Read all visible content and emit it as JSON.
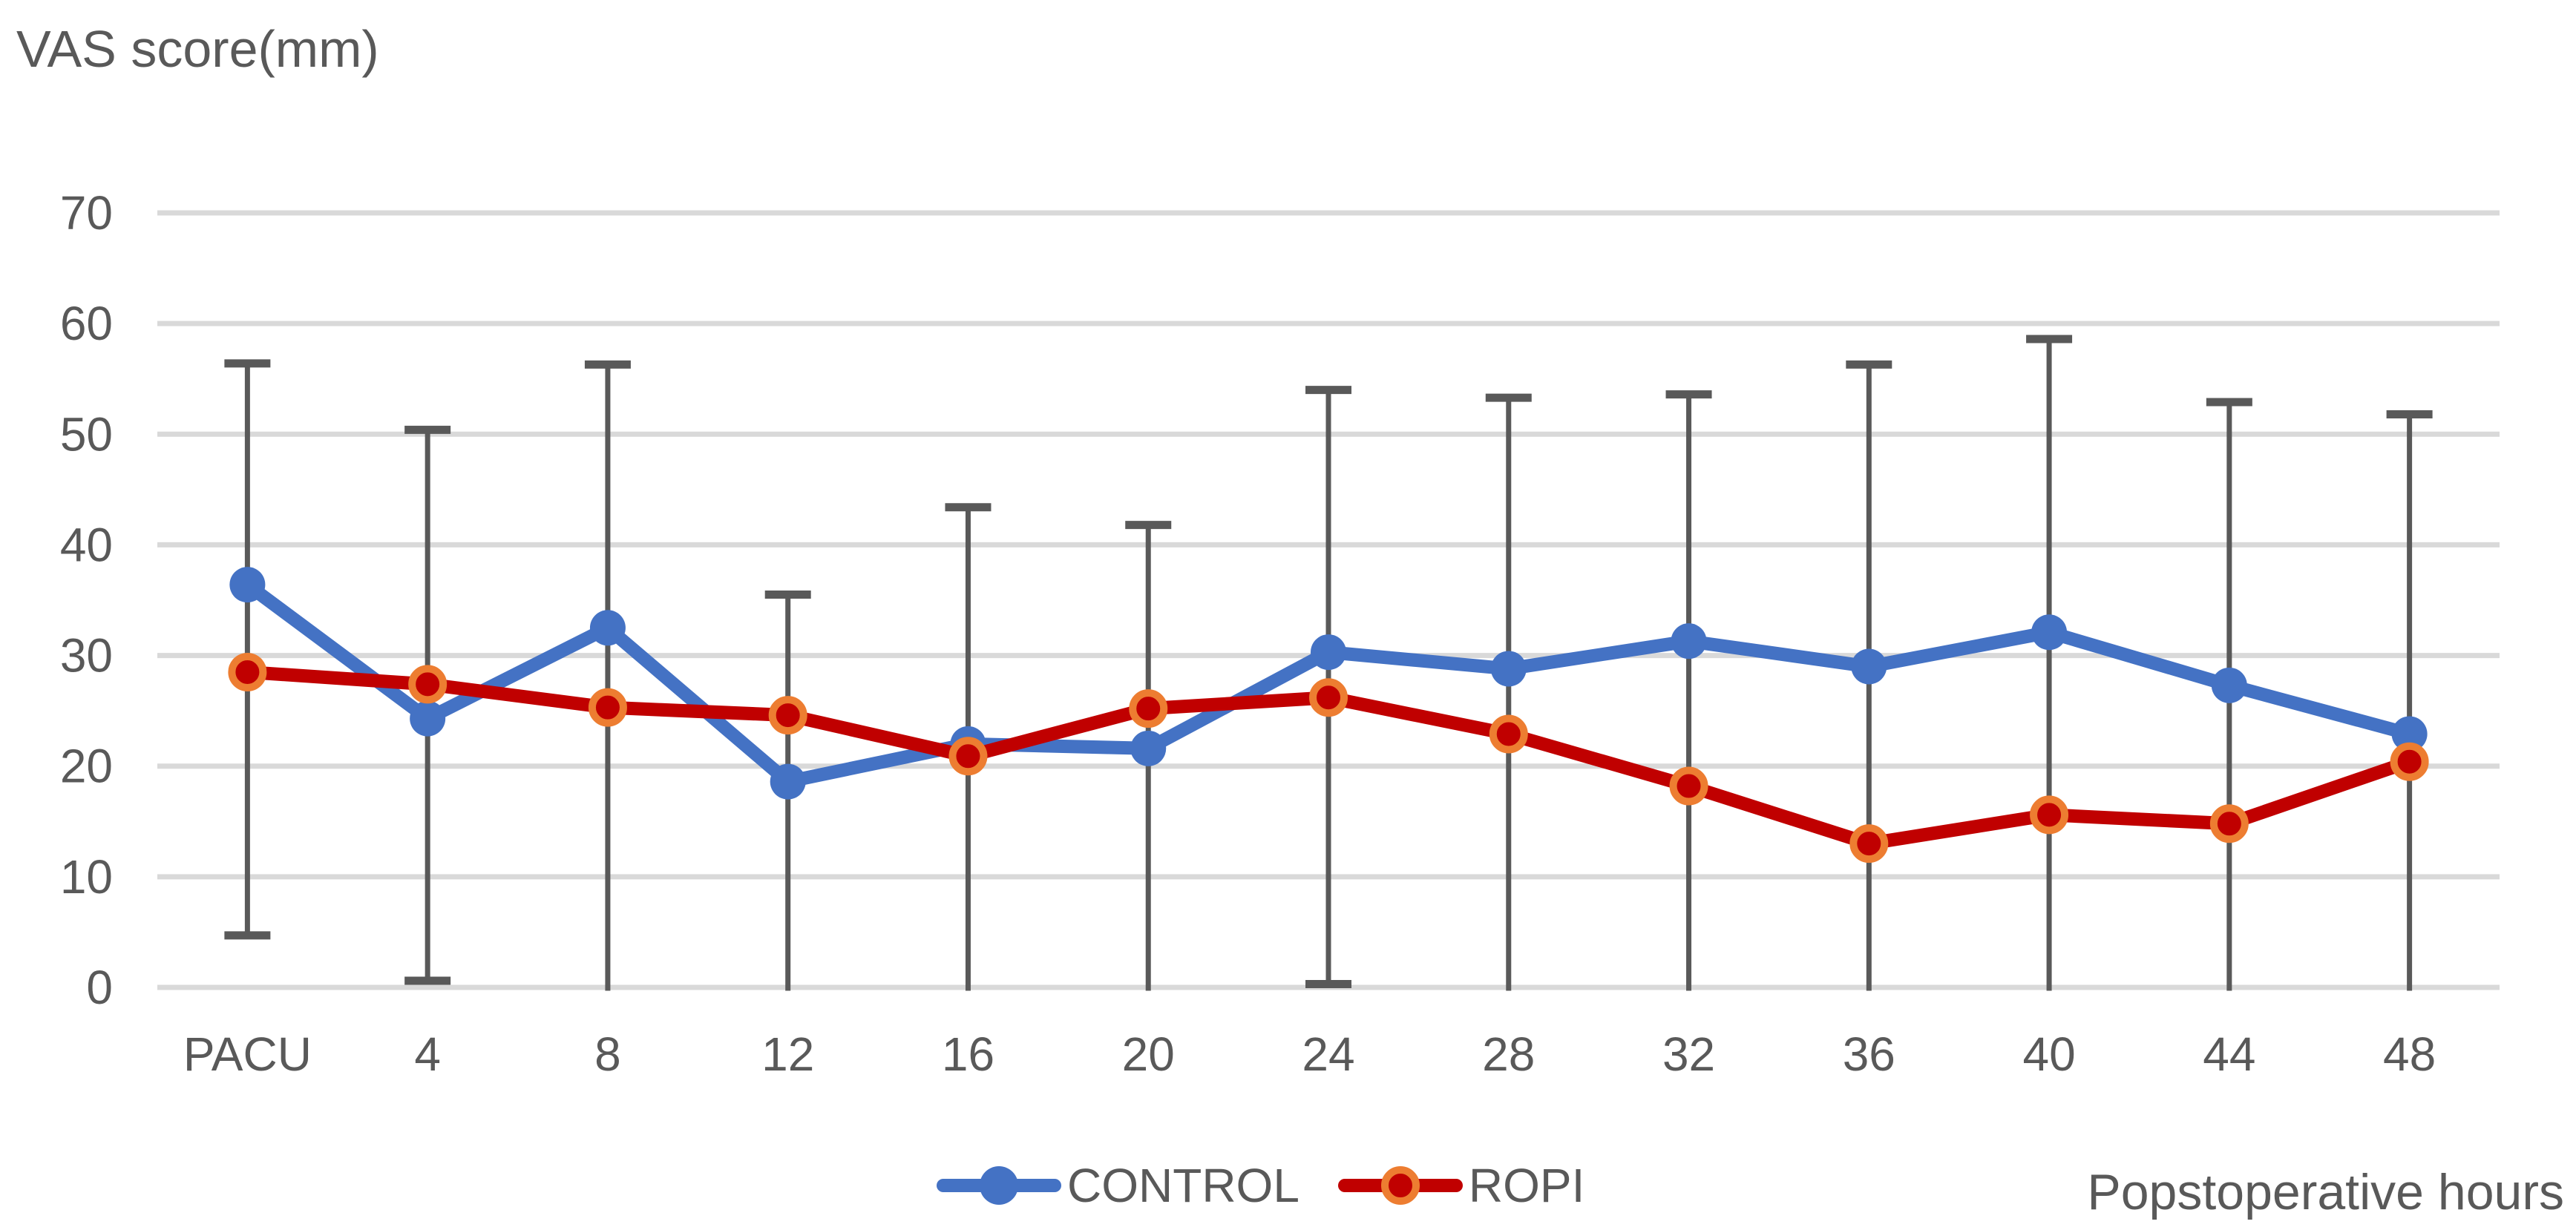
{
  "title": "VAS score(mm)",
  "x_axis_title": "Popstoperative hours",
  "colors": {
    "control_series": "#4472C4",
    "ropi_series": "#C00000",
    "ropi_marker_ring": "#ED7D31",
    "gridline": "#D9D9D9",
    "error_bar": "#595959",
    "text": "#595959",
    "background": "#FFFFFF"
  },
  "chart_data": {
    "type": "line",
    "title": "VAS score(mm)",
    "xlabel": "Popstoperative hours",
    "ylabel": "VAS score(mm)",
    "categories": [
      "PACU",
      "4",
      "8",
      "12",
      "16",
      "20",
      "24",
      "28",
      "32",
      "36",
      "40",
      "44",
      "48"
    ],
    "series": [
      {
        "name": "CONTROL",
        "color": "#4472C4",
        "marker": "circle",
        "values": [
          36.4,
          24.3,
          32.5,
          18.6,
          22.0,
          21.6,
          30.3,
          28.8,
          31.3,
          29.0,
          32.1,
          27.3,
          22.9
        ]
      },
      {
        "name": "ROPI",
        "color": "#C00000",
        "marker": "circle",
        "marker_ring": "#ED7D31",
        "values": [
          28.5,
          27.4,
          25.3,
          24.6,
          20.9,
          25.2,
          26.2,
          22.9,
          18.2,
          13.0,
          15.6,
          14.8,
          20.4
        ]
      }
    ],
    "error_bars": {
      "color": "#595959",
      "top": [
        56.4,
        50.4,
        56.3,
        35.5,
        43.4,
        41.8,
        54.0,
        53.3,
        53.6,
        56.3,
        58.6,
        52.9,
        51.8
      ],
      "bottom": [
        4.7,
        0.6,
        -0.3,
        -0.3,
        -0.3,
        -0.3,
        0.3,
        -0.3,
        -0.3,
        -0.3,
        -0.3,
        -0.3,
        -0.3
      ],
      "bottom_cap": [
        true,
        true,
        false,
        false,
        false,
        false,
        true,
        false,
        false,
        false,
        false,
        false,
        false
      ],
      "top_cap": [
        true,
        true,
        true,
        true,
        true,
        true,
        true,
        true,
        true,
        true,
        true,
        true,
        true
      ]
    },
    "ylim": [
      0,
      70
    ],
    "ytick_step": 10,
    "yticks": [
      0,
      10,
      20,
      30,
      40,
      50,
      60,
      70
    ],
    "grid": true,
    "legend_position": "bottom"
  }
}
